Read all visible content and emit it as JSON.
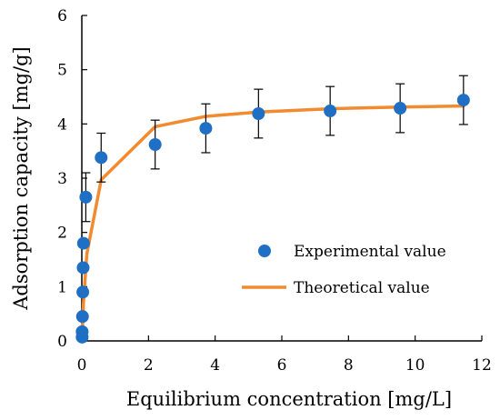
{
  "chart_data": {
    "type": "scatter",
    "title": "",
    "xlabel": "Equilibrium concentration [mg/L]",
    "ylabel": "Adsorption capacity [mg/g]",
    "xlim": [
      0,
      12
    ],
    "ylim": [
      0,
      6
    ],
    "x_ticks": [
      0,
      2,
      4,
      6,
      8,
      10,
      12
    ],
    "y_ticks": [
      0,
      1,
      2,
      3,
      4,
      5,
      6
    ],
    "grid": false,
    "legend_position": "center-right",
    "series": [
      {
        "name": "Experimental value",
        "kind": "scatter",
        "color": "#1F6FC5",
        "points": [
          {
            "x": 0.01,
            "y": 0.07,
            "err": 0
          },
          {
            "x": 0.01,
            "y": 0.17,
            "err": 0
          },
          {
            "x": 0.02,
            "y": 0.45,
            "err": 0
          },
          {
            "x": 0.03,
            "y": 0.9,
            "err": 0
          },
          {
            "x": 0.04,
            "y": 1.35,
            "err": 0
          },
          {
            "x": 0.05,
            "y": 1.8,
            "err": 0
          },
          {
            "x": 0.12,
            "y": 2.65,
            "err": 0.45
          },
          {
            "x": 0.58,
            "y": 3.38,
            "err": 0.45
          },
          {
            "x": 2.2,
            "y": 3.62,
            "err": 0.45
          },
          {
            "x": 3.72,
            "y": 3.92,
            "err": 0.45
          },
          {
            "x": 5.3,
            "y": 4.19,
            "err": 0.45
          },
          {
            "x": 7.45,
            "y": 4.24,
            "err": 0.45
          },
          {
            "x": 9.55,
            "y": 4.29,
            "err": 0.45
          },
          {
            "x": 11.45,
            "y": 4.44,
            "err": 0.45
          }
        ]
      },
      {
        "name": "Theoretical value",
        "kind": "line",
        "color": "#F28A30",
        "points": [
          {
            "x": 0.01,
            "y": 0.1
          },
          {
            "x": 0.05,
            "y": 0.7
          },
          {
            "x": 0.15,
            "y": 1.6
          },
          {
            "x": 0.58,
            "y": 2.97
          },
          {
            "x": 2.2,
            "y": 3.95
          },
          {
            "x": 3.72,
            "y": 4.14
          },
          {
            "x": 5.3,
            "y": 4.22
          },
          {
            "x": 7.45,
            "y": 4.28
          },
          {
            "x": 9.55,
            "y": 4.31
          },
          {
            "x": 11.45,
            "y": 4.33
          }
        ]
      }
    ]
  }
}
